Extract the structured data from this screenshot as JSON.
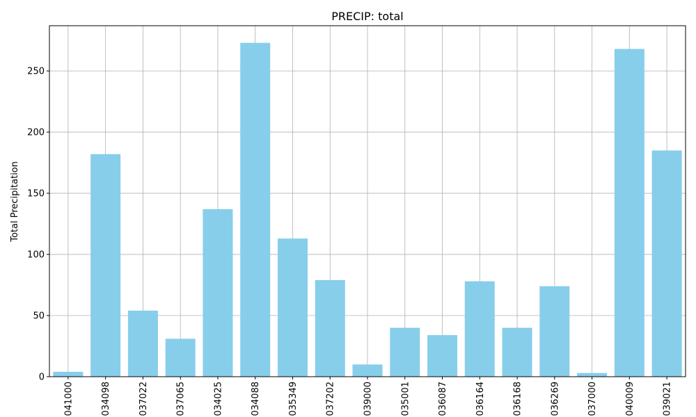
{
  "chart_data": {
    "type": "bar",
    "title": "PRECIP: total",
    "xlabel": "",
    "ylabel": "Total Precipitation",
    "categories": [
      "041000",
      "034098",
      "037022",
      "037065",
      "034025",
      "034088",
      "035349",
      "037202",
      "039000",
      "035001",
      "036087",
      "036164",
      "036168",
      "036269",
      "037000",
      "040009",
      "039021"
    ],
    "values": [
      4,
      182,
      54,
      31,
      137,
      273,
      113,
      79,
      10,
      40,
      34,
      78,
      40,
      74,
      3,
      268,
      185
    ],
    "ylim": [
      0,
      287
    ],
    "yticks": [
      0,
      50,
      100,
      150,
      200,
      250
    ],
    "grid": true,
    "bar_color": "#87ceeb"
  }
}
